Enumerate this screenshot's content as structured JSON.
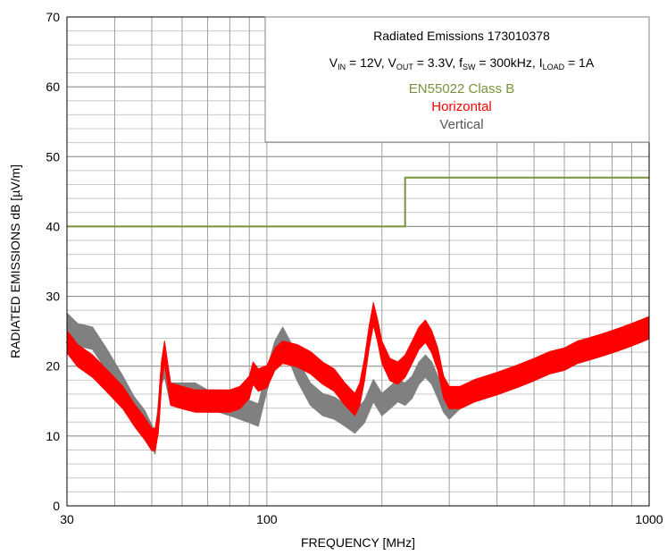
{
  "chart_data": {
    "type": "line",
    "title": "Radiated Emissions 173010378",
    "conditions": {
      "vin_label": "V",
      "vin_sub": "IN",
      "vin_value": " = 12V, ",
      "vout_label": "V",
      "vout_sub": "OUT",
      "vout_value": " = 3.3V, ",
      "fsw_label": "f",
      "fsw_sub": "SW",
      "fsw_value": " = 300kHz, ",
      "iload_label": "I",
      "iload_sub": "LOAD",
      "iload_value": " = 1A"
    },
    "xlabel": "FREQUENCY [MHz]",
    "ylabel": "RADIATED EMISSIONS dB [µV/m]",
    "x_scale": "log",
    "xlim": [
      30,
      1000
    ],
    "ylim": [
      0,
      70
    ],
    "x_tick_labels": [
      30,
      100,
      1000
    ],
    "y_ticks": [
      0,
      10,
      20,
      30,
      40,
      50,
      60,
      70
    ],
    "grid": true,
    "legend_placement": "top-right",
    "colors": {
      "limit": "#77933c",
      "horizontal": "#ff0000",
      "vertical": "#808080"
    },
    "series": [
      {
        "name": "EN55022 Class B",
        "style": "step",
        "x": [
          30,
          230,
          230,
          1000
        ],
        "y": [
          40,
          40,
          47,
          47
        ]
      },
      {
        "name": "Horizontal",
        "x": [
          30,
          32,
          35,
          38,
          42,
          45,
          48,
          50,
          51,
          52,
          53,
          54,
          56,
          60,
          65,
          70,
          75,
          80,
          85,
          90,
          92,
          95,
          100,
          105,
          110,
          120,
          130,
          140,
          150,
          160,
          170,
          175,
          180,
          185,
          190,
          195,
          200,
          210,
          220,
          230,
          240,
          250,
          260,
          270,
          280,
          290,
          300,
          320,
          350,
          400,
          450,
          500,
          550,
          600,
          650,
          700,
          750,
          800,
          850,
          900,
          950,
          1000
        ],
        "y": [
          23.5,
          21.5,
          20,
          18,
          15.5,
          13,
          11,
          9.5,
          9.5,
          12,
          19,
          22,
          16,
          15.5,
          15,
          15,
          15,
          15,
          15.5,
          17,
          19,
          18,
          18.5,
          21,
          22,
          21.5,
          20.5,
          19,
          18,
          16,
          14.5,
          16,
          19.5,
          24,
          27.5,
          25,
          22,
          19.5,
          19,
          20,
          22,
          24,
          25,
          23.5,
          21,
          17,
          15.5,
          15.5,
          16.5,
          17.5,
          18.5,
          19.5,
          20.5,
          21,
          22,
          22.5,
          23,
          23.5,
          24,
          24.5,
          25,
          25.5
        ],
        "band": 1.6
      },
      {
        "name": "Vertical",
        "x": [
          30,
          32,
          35,
          38,
          42,
          45,
          48,
          50,
          51,
          52,
          53,
          54,
          56,
          60,
          65,
          70,
          75,
          80,
          85,
          90,
          95,
          100,
          105,
          110,
          115,
          120,
          130,
          140,
          150,
          160,
          170,
          180,
          190,
          200,
          210,
          220,
          230,
          240,
          250,
          260,
          270,
          280,
          290,
          300,
          320,
          350,
          400,
          450,
          500,
          550,
          600,
          650,
          700,
          750,
          800,
          850,
          900,
          950,
          1000
        ],
        "y": [
          26,
          24.5,
          24,
          21,
          17,
          14,
          12,
          10,
          9,
          13,
          19,
          20,
          16,
          16,
          16,
          15,
          15,
          14.5,
          14,
          13.5,
          13,
          18,
          22,
          24,
          22,
          19.5,
          16,
          14.5,
          14,
          13,
          12,
          13.5,
          16.5,
          14.5,
          15.5,
          16.5,
          16,
          17,
          19,
          20,
          19,
          17,
          15,
          14,
          15.5,
          16.5,
          17.5,
          18.5,
          19.5,
          20.5,
          21,
          22,
          22.5,
          23,
          23.5,
          24,
          24.5,
          25,
          25.5
        ],
        "band": 1.6
      }
    ]
  }
}
